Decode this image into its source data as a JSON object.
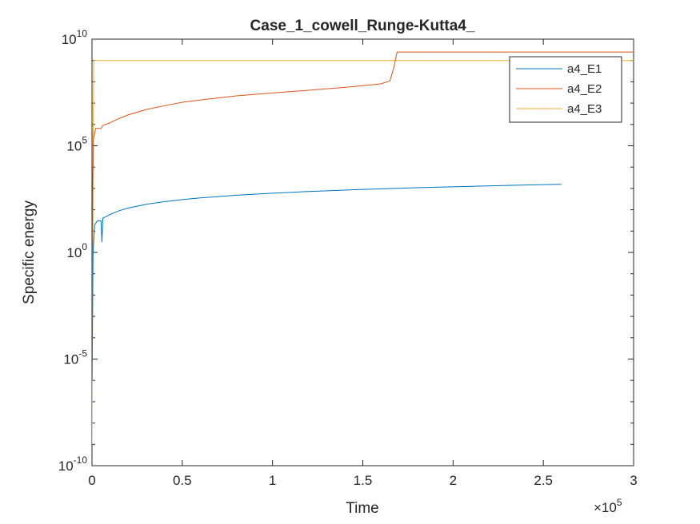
{
  "chart_data": {
    "type": "line",
    "title": "Case_1_cowell_Runge-Kutta4_",
    "xlabel": "Time",
    "ylabel": "Specific energy",
    "x_exponent_label": "×10",
    "x_exponent": "5",
    "xlim": [
      0,
      300000
    ],
    "ylim_log10": [
      -10,
      10
    ],
    "yscale": "log",
    "grid": false,
    "legend_position": "top-right",
    "x_ticks": [
      {
        "value": 0,
        "label": "0"
      },
      {
        "value": 50000,
        "label": "0.5"
      },
      {
        "value": 100000,
        "label": "1"
      },
      {
        "value": 150000,
        "label": "1.5"
      },
      {
        "value": 200000,
        "label": "2"
      },
      {
        "value": 250000,
        "label": "2.5"
      },
      {
        "value": 300000,
        "label": "3"
      }
    ],
    "y_ticks": [
      {
        "exp": -10,
        "base": "10",
        "sup": "-10"
      },
      {
        "exp": -5,
        "base": "10",
        "sup": "-5"
      },
      {
        "exp": 0,
        "base": "10",
        "sup": "0"
      },
      {
        "exp": 5,
        "base": "10",
        "sup": "5"
      },
      {
        "exp": 10,
        "base": "10",
        "sup": "10"
      }
    ],
    "series": [
      {
        "name": "a4_E1",
        "color": "#0072BD",
        "points": [
          [
            0,
            1e-06
          ],
          [
            600,
            1
          ],
          [
            1500,
            20
          ],
          [
            3000,
            30
          ],
          [
            5000,
            30
          ],
          [
            5500,
            3
          ],
          [
            6000,
            40
          ],
          [
            10000,
            60
          ],
          [
            15000,
            90
          ],
          [
            20000,
            120
          ],
          [
            30000,
            180
          ],
          [
            40000,
            240
          ],
          [
            50000,
            300
          ],
          [
            60000,
            360
          ],
          [
            80000,
            480
          ],
          [
            100000,
            600
          ],
          [
            120000,
            720
          ],
          [
            150000,
            900
          ],
          [
            180000,
            1080
          ],
          [
            210000,
            1260
          ],
          [
            240000,
            1440
          ],
          [
            260000,
            1560
          ]
        ]
      },
      {
        "name": "a4_E2",
        "color": "#D95319",
        "points": [
          [
            0,
            1e-06
          ],
          [
            400,
            1000
          ],
          [
            800,
            200000
          ],
          [
            2000,
            650000
          ],
          [
            5000,
            650000
          ],
          [
            6000,
            900000
          ],
          [
            10000,
            1200000
          ],
          [
            15000,
            1900000
          ],
          [
            20000,
            2800000
          ],
          [
            30000,
            5000000
          ],
          [
            40000,
            7500000
          ],
          [
            50000,
            11000000
          ],
          [
            60000,
            14000000
          ],
          [
            80000,
            22000000
          ],
          [
            100000,
            30000000
          ],
          [
            120000,
            40000000
          ],
          [
            140000,
            55000000
          ],
          [
            160000,
            80000000
          ],
          [
            165000,
            110000000
          ],
          [
            167000,
            400000000
          ],
          [
            169000,
            2500000000
          ],
          [
            175000,
            2500000000
          ],
          [
            200000,
            2500000000
          ],
          [
            260000,
            2500000000
          ],
          [
            300000,
            2500000000
          ]
        ]
      },
      {
        "name": "a4_E3",
        "color": "#EDB120",
        "points": [
          [
            0,
            1e-09
          ],
          [
            300,
            0.001
          ],
          [
            600,
            100000
          ],
          [
            1000,
            1000000000
          ],
          [
            50000,
            1000000000
          ],
          [
            100000,
            1000000000
          ],
          [
            150000,
            1000000000
          ],
          [
            200000,
            1000000000
          ],
          [
            260000,
            1000000000
          ],
          [
            300000,
            1000000000
          ]
        ]
      }
    ]
  }
}
